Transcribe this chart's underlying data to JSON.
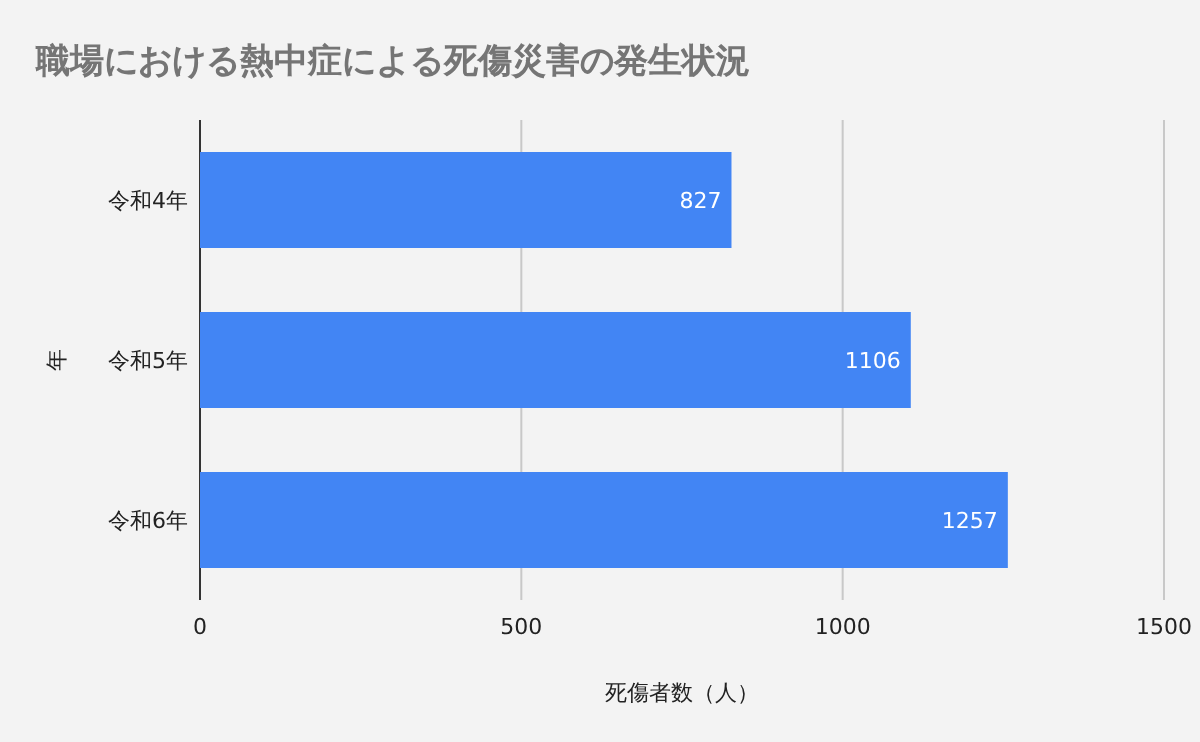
{
  "chart_data": {
    "type": "bar",
    "title": "職場における熱中症による死傷災害の発生状況",
    "xlabel": "死傷者数（人）",
    "ylabel": "年",
    "categories": [
      "令和4年",
      "令和5年",
      "令和6年"
    ],
    "values": [
      827,
      1106,
      1257
    ],
    "color": "#4285f4",
    "orientation": "horizontal",
    "xlim": [
      0,
      1500
    ],
    "xticks": [
      0,
      500,
      1000,
      1500
    ],
    "grid": "x",
    "data_labels": true
  }
}
